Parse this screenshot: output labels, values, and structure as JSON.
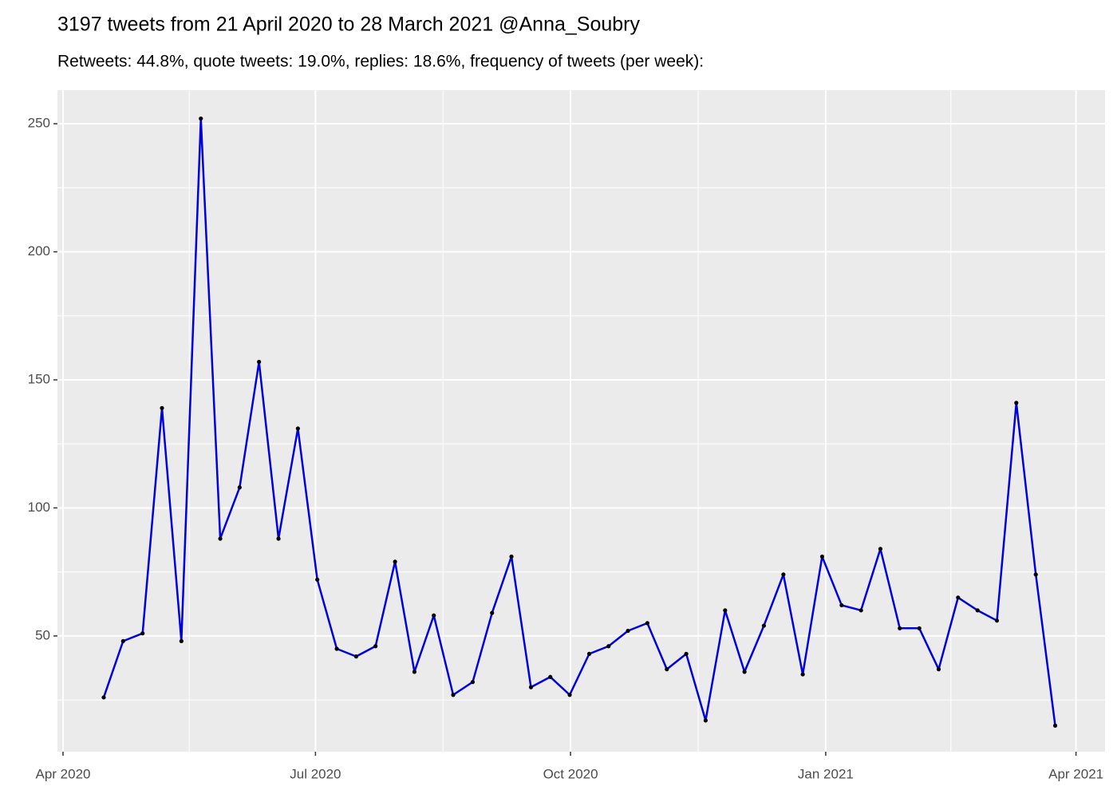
{
  "chart_data": {
    "type": "line",
    "title": "3197 tweets from 21 April 2020 to 28 March 2021 @Anna_Soubry",
    "subtitle": "Retweets: 44.8%, quote tweets: 19.0%, replies: 18.6%, frequency of tweets (per week):",
    "x": [
      2020.2887,
      2020.3078,
      2020.327,
      2020.3461,
      2020.3652,
      2020.3844,
      2020.4035,
      2020.4226,
      2020.4417,
      2020.4609,
      2020.48,
      2020.4991,
      2020.5183,
      2020.5374,
      2020.5565,
      2020.5757,
      2020.5948,
      2020.6139,
      2020.633,
      2020.6522,
      2020.6713,
      2020.6904,
      2020.7096,
      2020.7287,
      2020.7478,
      2020.767,
      2020.7861,
      2020.8052,
      2020.8243,
      2020.8435,
      2020.8626,
      2020.8817,
      2020.9009,
      2020.92,
      2020.9391,
      2020.9583,
      2020.9774,
      2020.9965,
      2021.0157,
      2021.0348,
      2021.0539,
      2021.073,
      2021.0922,
      2021.1113,
      2021.1304,
      2021.1496,
      2021.1687,
      2021.1878,
      2021.207,
      2021.2261
    ],
    "values": [
      26,
      48,
      51,
      139,
      48,
      252,
      88,
      108,
      157,
      88,
      131,
      72,
      45,
      42,
      46,
      79,
      36,
      58,
      27,
      32,
      59,
      81,
      30,
      34,
      27,
      43,
      46,
      52,
      55,
      37,
      43,
      17,
      60,
      36,
      54,
      74,
      35,
      81,
      62,
      60,
      84,
      53,
      53,
      37,
      65,
      60,
      56,
      141,
      74,
      15
    ],
    "color": "#0000dd",
    "point_color": "#000000",
    "xlim": [
      2020.2431,
      2021.2752
    ],
    "xticks": [
      {
        "value": 2020.2486,
        "label": "Apr 2020"
      },
      {
        "value": 2020.4973,
        "label": "Jul 2020"
      },
      {
        "value": 2020.7486,
        "label": "Oct 2020"
      },
      {
        "value": 2021.0,
        "label": "Jan 2021"
      },
      {
        "value": 2021.2466,
        "label": "Apr 2021"
      }
    ],
    "ylim": [
      4.8,
      263.1
    ],
    "yticks": [
      50,
      100,
      150,
      200,
      250
    ],
    "grid": true
  }
}
